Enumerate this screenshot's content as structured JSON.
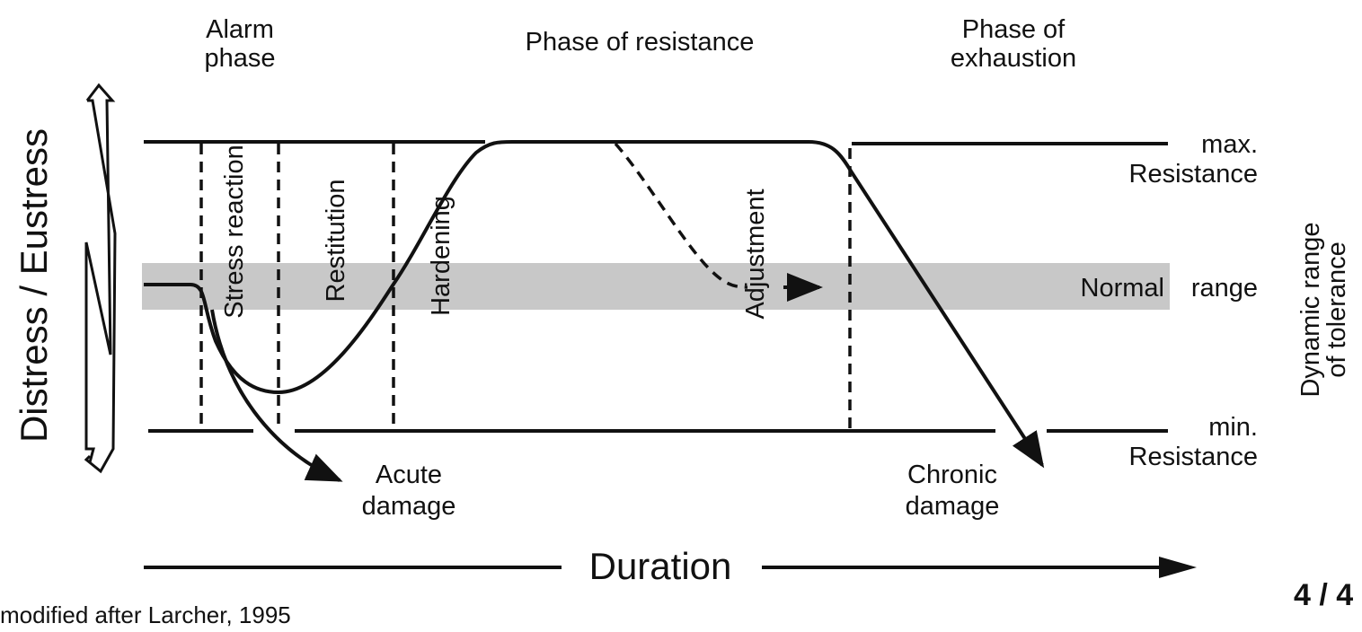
{
  "phases": {
    "alarm": [
      "Alarm",
      "phase"
    ],
    "resistance": "Phase of resistance",
    "exhaustion": [
      "Phase of",
      "exhaustion"
    ]
  },
  "left_axis": "Distress / Eustress",
  "right_axis": [
    "Dynamic range",
    "of tolerance"
  ],
  "stages": [
    "Stress reaction",
    "Restitution",
    "Hardening",
    "Adjustment"
  ],
  "levels": {
    "max": [
      "max.",
      "Resistance"
    ],
    "normal": [
      "Normal",
      "range"
    ],
    "min": [
      "min.",
      "Resistance"
    ]
  },
  "outcomes": {
    "acute": [
      "Acute",
      "damage"
    ],
    "chronic": [
      "Chronic",
      "damage"
    ]
  },
  "x_axis": "Duration",
  "source": "modified after Larcher, 1995",
  "page": "4 / 4"
}
